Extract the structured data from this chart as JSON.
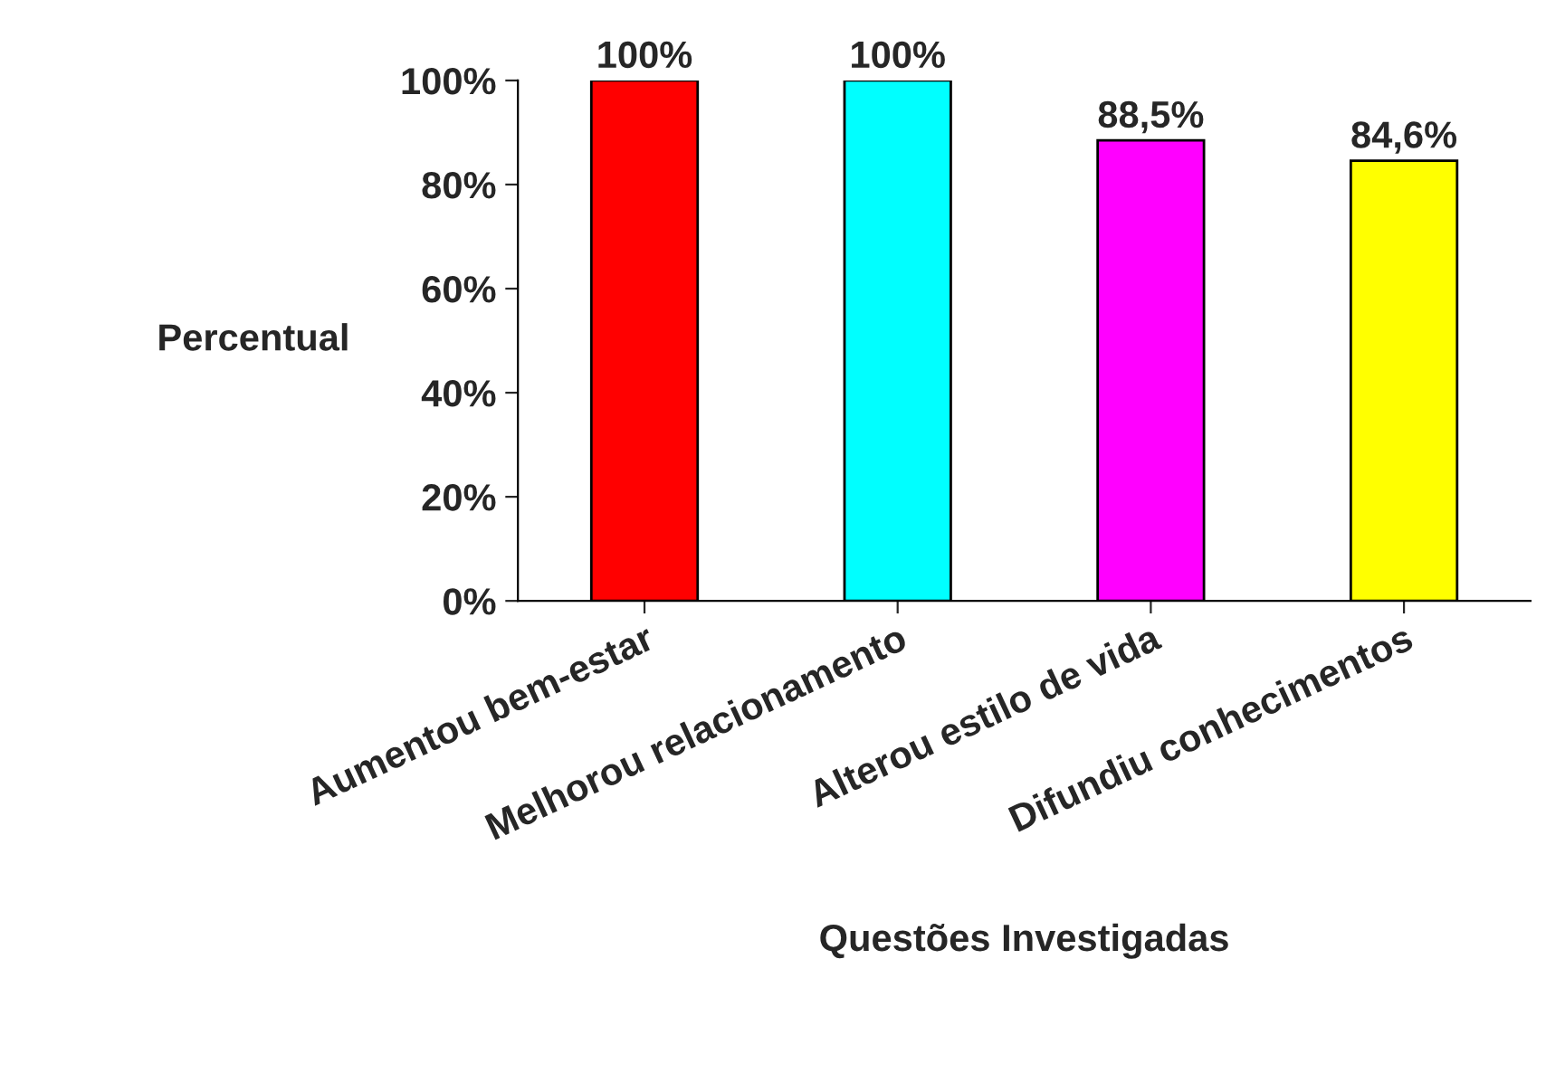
{
  "chart_data": {
    "type": "bar",
    "xlabel": "Questões Investigadas",
    "ylabel": "Percentual",
    "categories": [
      "Aumentou bem-estar",
      "Melhorou relacionamento",
      "Alterou estilo de vida",
      "Difundiu conhecimentos"
    ],
    "values": [
      100,
      100,
      88.5,
      84.6
    ],
    "colors": [
      "#ff0000",
      "#00ffff",
      "#ff00ff",
      "#ffff00"
    ],
    "value_labels": [
      "100%",
      "100%",
      "88,5%",
      "84,6%"
    ],
    "ylim": [
      0,
      100
    ],
    "yticks": [
      {
        "value": 0,
        "label": "0%"
      },
      {
        "value": 20,
        "label": "20%"
      },
      {
        "value": 40,
        "label": "40%"
      },
      {
        "value": 60,
        "label": "60%"
      },
      {
        "value": 80,
        "label": "80%"
      },
      {
        "value": 100,
        "label": "100%"
      }
    ],
    "grid": false,
    "legend": false
  }
}
